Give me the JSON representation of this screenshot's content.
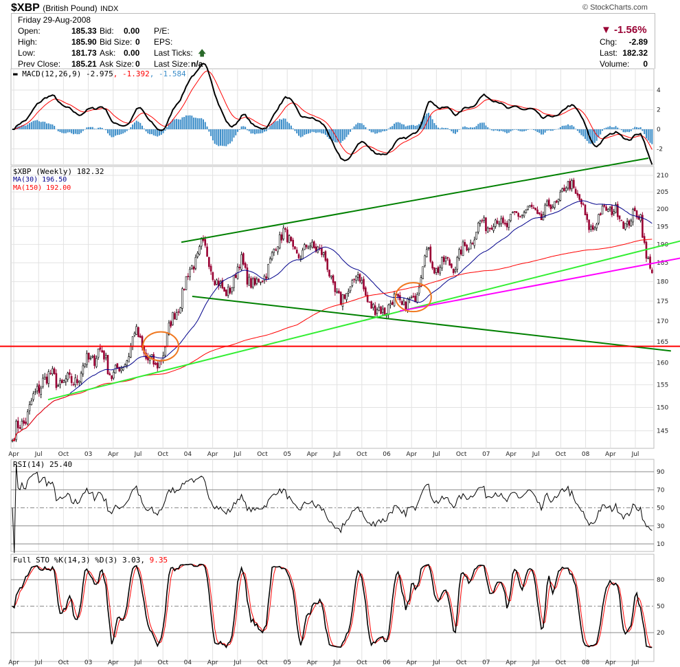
{
  "header": {
    "symbol": "$XBP",
    "name": "(British Pound)",
    "exchange": "INDX",
    "copyright": "© StockCharts.com"
  },
  "quote": {
    "date": "Friday  29-Aug-2008",
    "open_label": "Open:",
    "open": "185.33",
    "high_label": "High:",
    "high": "185.90",
    "low_label": "Low:",
    "low": "181.73",
    "prev_label": "Prev Close:",
    "prev": "185.21",
    "bid_label": "Bid:",
    "bid": "0.00",
    "bidsize_label": "Bid Size:",
    "bidsize": "0",
    "ask_label": "Ask:",
    "ask": "0.00",
    "asksize_label": "Ask Size:",
    "asksize": "0",
    "pe_label": "P/E:",
    "eps_label": "EPS:",
    "ticks_label": "Last Ticks:",
    "lastsize_label": "Last Size:",
    "lastsize": "n/a",
    "pct": "-1.56%",
    "chg_label": "Chg:",
    "chg": "-2.89",
    "last_label": "Last:",
    "last": "182.32",
    "vol_label": "Volume:",
    "vol": "0"
  },
  "colors": {
    "down": "#990033",
    "up": "#000000",
    "ma30": "#00008b",
    "ma150": "#ff0000",
    "macd_hist": "#3a8cc8",
    "signal": "#ff0000",
    "dark_green": "#008000",
    "light_green": "#33ee33",
    "magenta": "#ff00ff",
    "orange": "#f07820"
  },
  "chart_data": {
    "type": "line",
    "title": "$XBP (Weekly) 182.32",
    "start": "2002-04-05",
    "frequency": "weekly",
    "close_anchors": [
      [
        0,
        143
      ],
      [
        12,
        152
      ],
      [
        16,
        157
      ],
      [
        30,
        155
      ],
      [
        45,
        163
      ],
      [
        52,
        158
      ],
      [
        57,
        158
      ],
      [
        64,
        167
      ],
      [
        75,
        158
      ],
      [
        81,
        166
      ],
      [
        91,
        180
      ],
      [
        99,
        190
      ],
      [
        111,
        176
      ],
      [
        120,
        185
      ],
      [
        127,
        178
      ],
      [
        136,
        186
      ],
      [
        142,
        195
      ],
      [
        147,
        187
      ],
      [
        160,
        190
      ],
      [
        172,
        174
      ],
      [
        180,
        182
      ],
      [
        190,
        172
      ],
      [
        201,
        175
      ],
      [
        210,
        174
      ],
      [
        216,
        188
      ],
      [
        221,
        184
      ],
      [
        232,
        185
      ],
      [
        246,
        196
      ],
      [
        260,
        196
      ],
      [
        268,
        200
      ],
      [
        277,
        198
      ],
      [
        286,
        203
      ],
      [
        293,
        208
      ],
      [
        301,
        196
      ],
      [
        305,
        195
      ],
      [
        311,
        201
      ],
      [
        322,
        196
      ],
      [
        329,
        199
      ],
      [
        332,
        186
      ],
      [
        335,
        182.32
      ]
    ],
    "price_axis": {
      "ticks": [
        210,
        205,
        200,
        195,
        190,
        185,
        180,
        175,
        170,
        165,
        160,
        155,
        150,
        145
      ],
      "scale": "log",
      "ylim": [
        141,
        212
      ]
    },
    "x_ticks": [
      "Apr",
      "Jul",
      "Oct",
      "03",
      "Apr",
      "Jul",
      "Oct",
      "04",
      "Apr",
      "Jul",
      "Oct",
      "05",
      "Apr",
      "Jul",
      "Oct",
      "06",
      "Apr",
      "Jul",
      "Oct",
      "07",
      "Apr",
      "Jul",
      "Oct",
      "08",
      "Apr",
      "Jul"
    ],
    "overlays": {
      "ma30_label": "MA(30) 196.50",
      "ma150_label": "MA(150) 192.00"
    },
    "trendlines": [
      {
        "name": "upper-channel",
        "color": "dark_green",
        "p1": [
          88.5,
          190.6
        ],
        "p2": [
          333.1,
          215.3
        ]
      },
      {
        "name": "lower-channel",
        "color": "dark_green",
        "p1": [
          94.2,
          176.2
        ],
        "p2": [
          344.9,
          162.8
        ]
      },
      {
        "name": "long-support",
        "color": "light_green",
        "p1": [
          18.7,
          151.7
        ],
        "p2": [
          350.4,
          191.0
        ]
      },
      {
        "name": "recent-support",
        "color": "magenta",
        "p1": [
          202.9,
          172.5
        ],
        "p2": [
          350.4,
          186.3
        ]
      },
      {
        "name": "horizontal-support",
        "color": "ma150",
        "p1": [
          -10,
          163.9
        ],
        "p2": [
          350.4,
          163.9
        ]
      }
    ],
    "circles": [
      [
        77.7,
        163.9
      ],
      [
        210,
        176
      ]
    ],
    "macd": {
      "label": "MACD(12,26,9)",
      "v1": "-2.975",
      "v2": ", -1.392",
      "v3": ", -1.584",
      "ticks": [
        4,
        2,
        0,
        -2
      ]
    },
    "rsi": {
      "label": "RSI(14) 25.40",
      "ticks": [
        90,
        70,
        50,
        30,
        10
      ]
    },
    "sto": {
      "label": "Full STO %K(14,3) %D(3) 3.03,",
      "d": " 9.35",
      "ticks": [
        80,
        50,
        20
      ]
    }
  }
}
